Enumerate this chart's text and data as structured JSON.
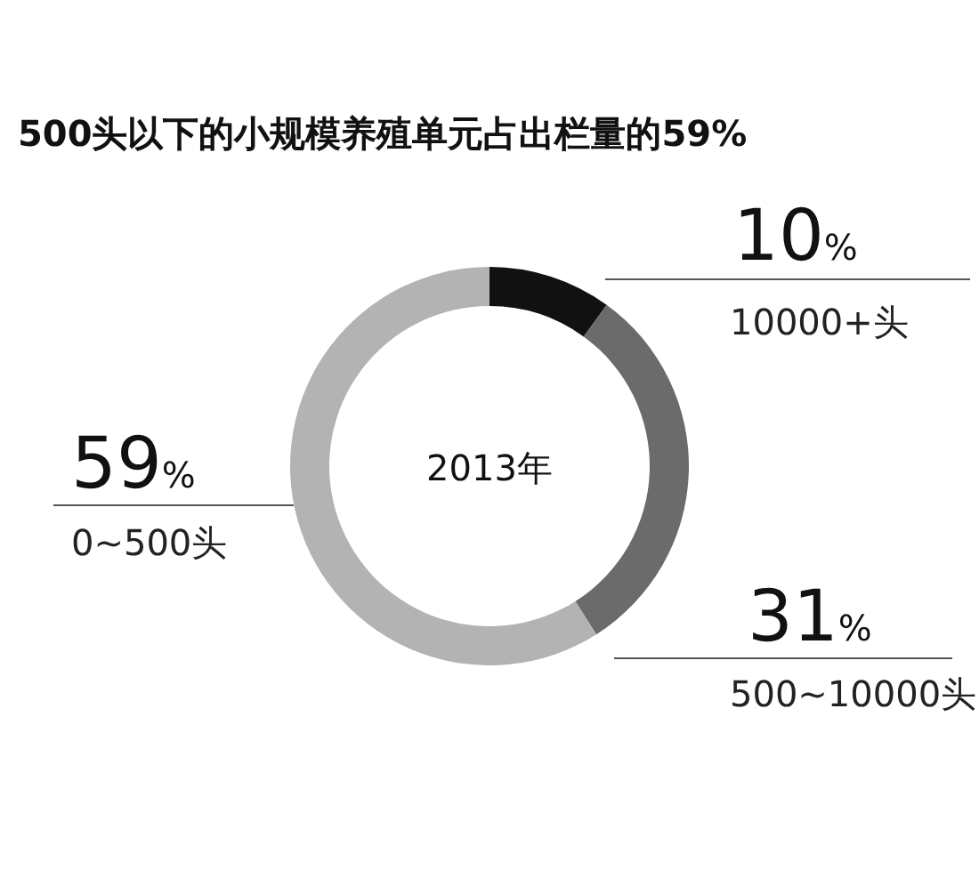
{
  "chart_data": {
    "type": "donut",
    "title": "500头以下的小规模养殖单元占出栏量的59%",
    "categories": [
      "10000+头",
      "500~10000头",
      "0~500头"
    ],
    "values": [
      10,
      31,
      59
    ],
    "colors": [
      "#111111",
      "#6b6b6b",
      "#b3b3b3"
    ],
    "value_labels": [
      "10%",
      "31%",
      "59%"
    ],
    "annotations": [
      "2013年"
    ]
  }
}
